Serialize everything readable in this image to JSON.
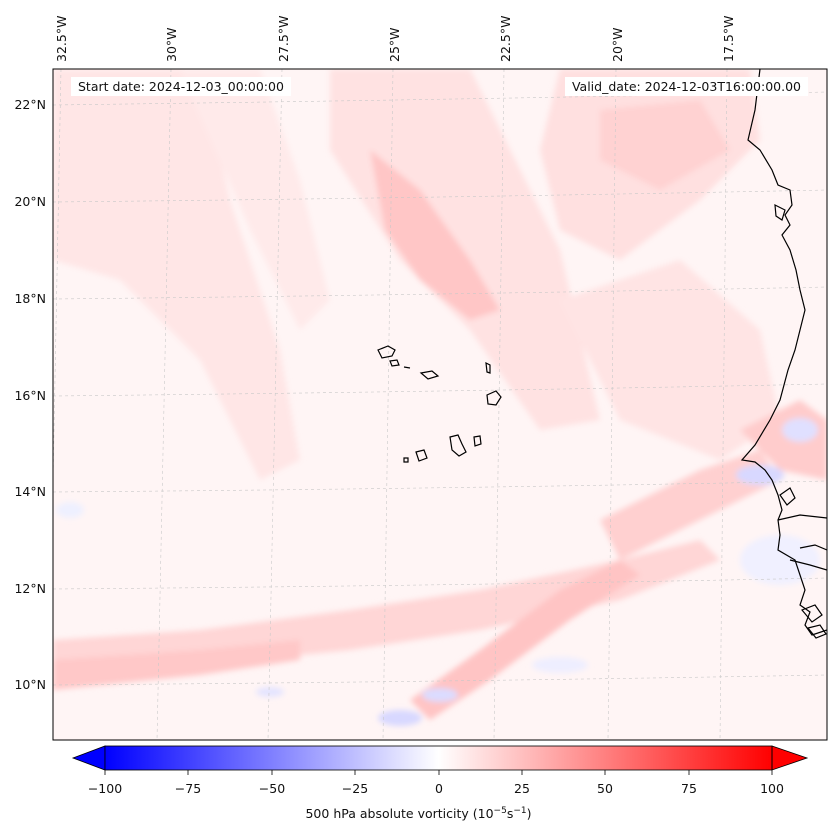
{
  "map": {
    "start_date": "Start date: 2024-12-03_00:00:00",
    "valid_date": "Valid_date: 2024-12-03T16:00:00.00",
    "longitude_labels": [
      "32.5°W",
      "30°W",
      "27.5°W",
      "25°W",
      "22.5°W",
      "20°W",
      "17.5°W"
    ],
    "latitude_labels": [
      "22°N",
      "20°N",
      "18°N",
      "16°N",
      "14°N",
      "12°N",
      "10°N"
    ],
    "field": "500 hPa absolute vorticity",
    "colormap": "bwr",
    "colors": {
      "negative_max": "#0000ff",
      "zero": "#ffffff",
      "positive_max": "#ff0000",
      "coastline": "#000000"
    }
  },
  "colorbar": {
    "tick_labels": [
      "−100",
      "−75",
      "−50",
      "−25",
      "0",
      "25",
      "50",
      "75",
      "100"
    ],
    "range": [
      -100,
      100
    ],
    "extend": "both",
    "label_text": "500 hPa absolute vorticity (10",
    "label_exp1": "−5",
    "label_mid": "s",
    "label_exp2": "−1",
    "label_end": ")"
  }
}
